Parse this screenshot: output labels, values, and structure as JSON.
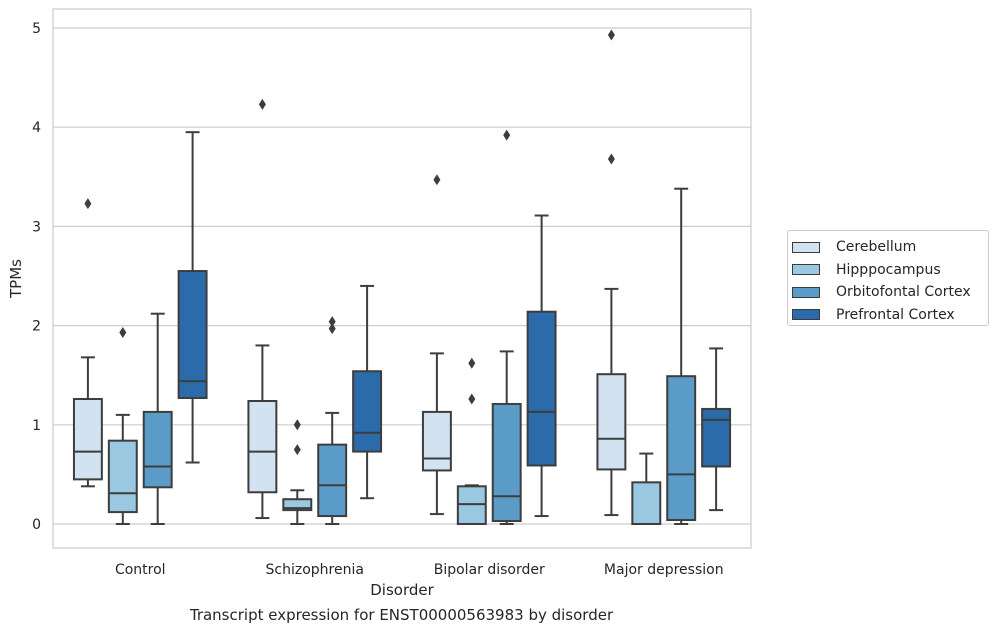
{
  "caption": "Transcript expression for ENST00000563983 by disorder",
  "chart_data": {
    "type": "box",
    "title": "",
    "xlabel": "Disorder",
    "ylabel": "TPMs",
    "ylim": [
      -0.25,
      5.2
    ],
    "yticks": [
      0,
      1,
      2,
      3,
      4,
      5
    ],
    "grid": true,
    "legend_position": "right",
    "categories": [
      "Control",
      "Schizophrenia",
      "Bipolar disorder",
      "Major depression"
    ],
    "series": [
      {
        "name": "Cerebellum",
        "color": "#d2e2f1",
        "boxes": [
          {
            "whislo": 0.38,
            "q1": 0.45,
            "med": 0.73,
            "q3": 1.26,
            "whishi": 1.68,
            "fliers": [
              3.23
            ]
          },
          {
            "whislo": 0.06,
            "q1": 0.32,
            "med": 0.73,
            "q3": 1.24,
            "whishi": 1.8,
            "fliers": [
              4.23
            ]
          },
          {
            "whislo": 0.1,
            "q1": 0.54,
            "med": 0.66,
            "q3": 1.13,
            "whishi": 1.72,
            "fliers": [
              3.47
            ]
          },
          {
            "whislo": 0.09,
            "q1": 0.55,
            "med": 0.86,
            "q3": 1.51,
            "whishi": 2.37,
            "fliers": [
              3.68,
              4.93
            ]
          }
        ]
      },
      {
        "name": "Hipppocampus",
        "color": "#9ac8e0",
        "boxes": [
          {
            "whislo": 0.0,
            "q1": 0.12,
            "med": 0.31,
            "q3": 0.84,
            "whishi": 1.1,
            "fliers": [
              1.93
            ]
          },
          {
            "whislo": 0.0,
            "q1": 0.14,
            "med": 0.16,
            "q3": 0.25,
            "whishi": 0.34,
            "fliers": [
              0.75,
              1.0
            ]
          },
          {
            "whislo": 0.0,
            "q1": 0.0,
            "med": 0.2,
            "q3": 0.38,
            "whishi": 0.39,
            "fliers": [
              1.26,
              1.62
            ]
          },
          {
            "whislo": 0.0,
            "q1": 0.0,
            "med": 0.0,
            "q3": 0.42,
            "whishi": 0.71,
            "fliers": []
          }
        ]
      },
      {
        "name": "Orbitofontal Cortex",
        "color": "#5b9bc8",
        "boxes": [
          {
            "whislo": 0.0,
            "q1": 0.37,
            "med": 0.58,
            "q3": 1.13,
            "whishi": 2.12,
            "fliers": []
          },
          {
            "whislo": 0.0,
            "q1": 0.08,
            "med": 0.39,
            "q3": 0.8,
            "whishi": 1.12,
            "fliers": [
              1.97,
              2.04
            ]
          },
          {
            "whislo": 0.0,
            "q1": 0.03,
            "med": 0.28,
            "q3": 1.21,
            "whishi": 1.74,
            "fliers": [
              3.92
            ]
          },
          {
            "whislo": 0.0,
            "q1": 0.04,
            "med": 0.5,
            "q3": 1.49,
            "whishi": 3.38,
            "fliers": []
          }
        ]
      },
      {
        "name": "Prefrontal Cortex",
        "color": "#2b6ba9",
        "boxes": [
          {
            "whislo": 0.62,
            "q1": 1.27,
            "med": 1.44,
            "q3": 2.55,
            "whishi": 3.95,
            "fliers": []
          },
          {
            "whislo": 0.26,
            "q1": 0.73,
            "med": 0.92,
            "q3": 1.54,
            "whishi": 2.4,
            "fliers": []
          },
          {
            "whislo": 0.08,
            "q1": 0.59,
            "med": 1.13,
            "q3": 2.14,
            "whishi": 3.11,
            "fliers": []
          },
          {
            "whislo": 0.14,
            "q1": 0.58,
            "med": 1.05,
            "q3": 1.16,
            "whishi": 1.77,
            "fliers": []
          }
        ]
      }
    ]
  }
}
